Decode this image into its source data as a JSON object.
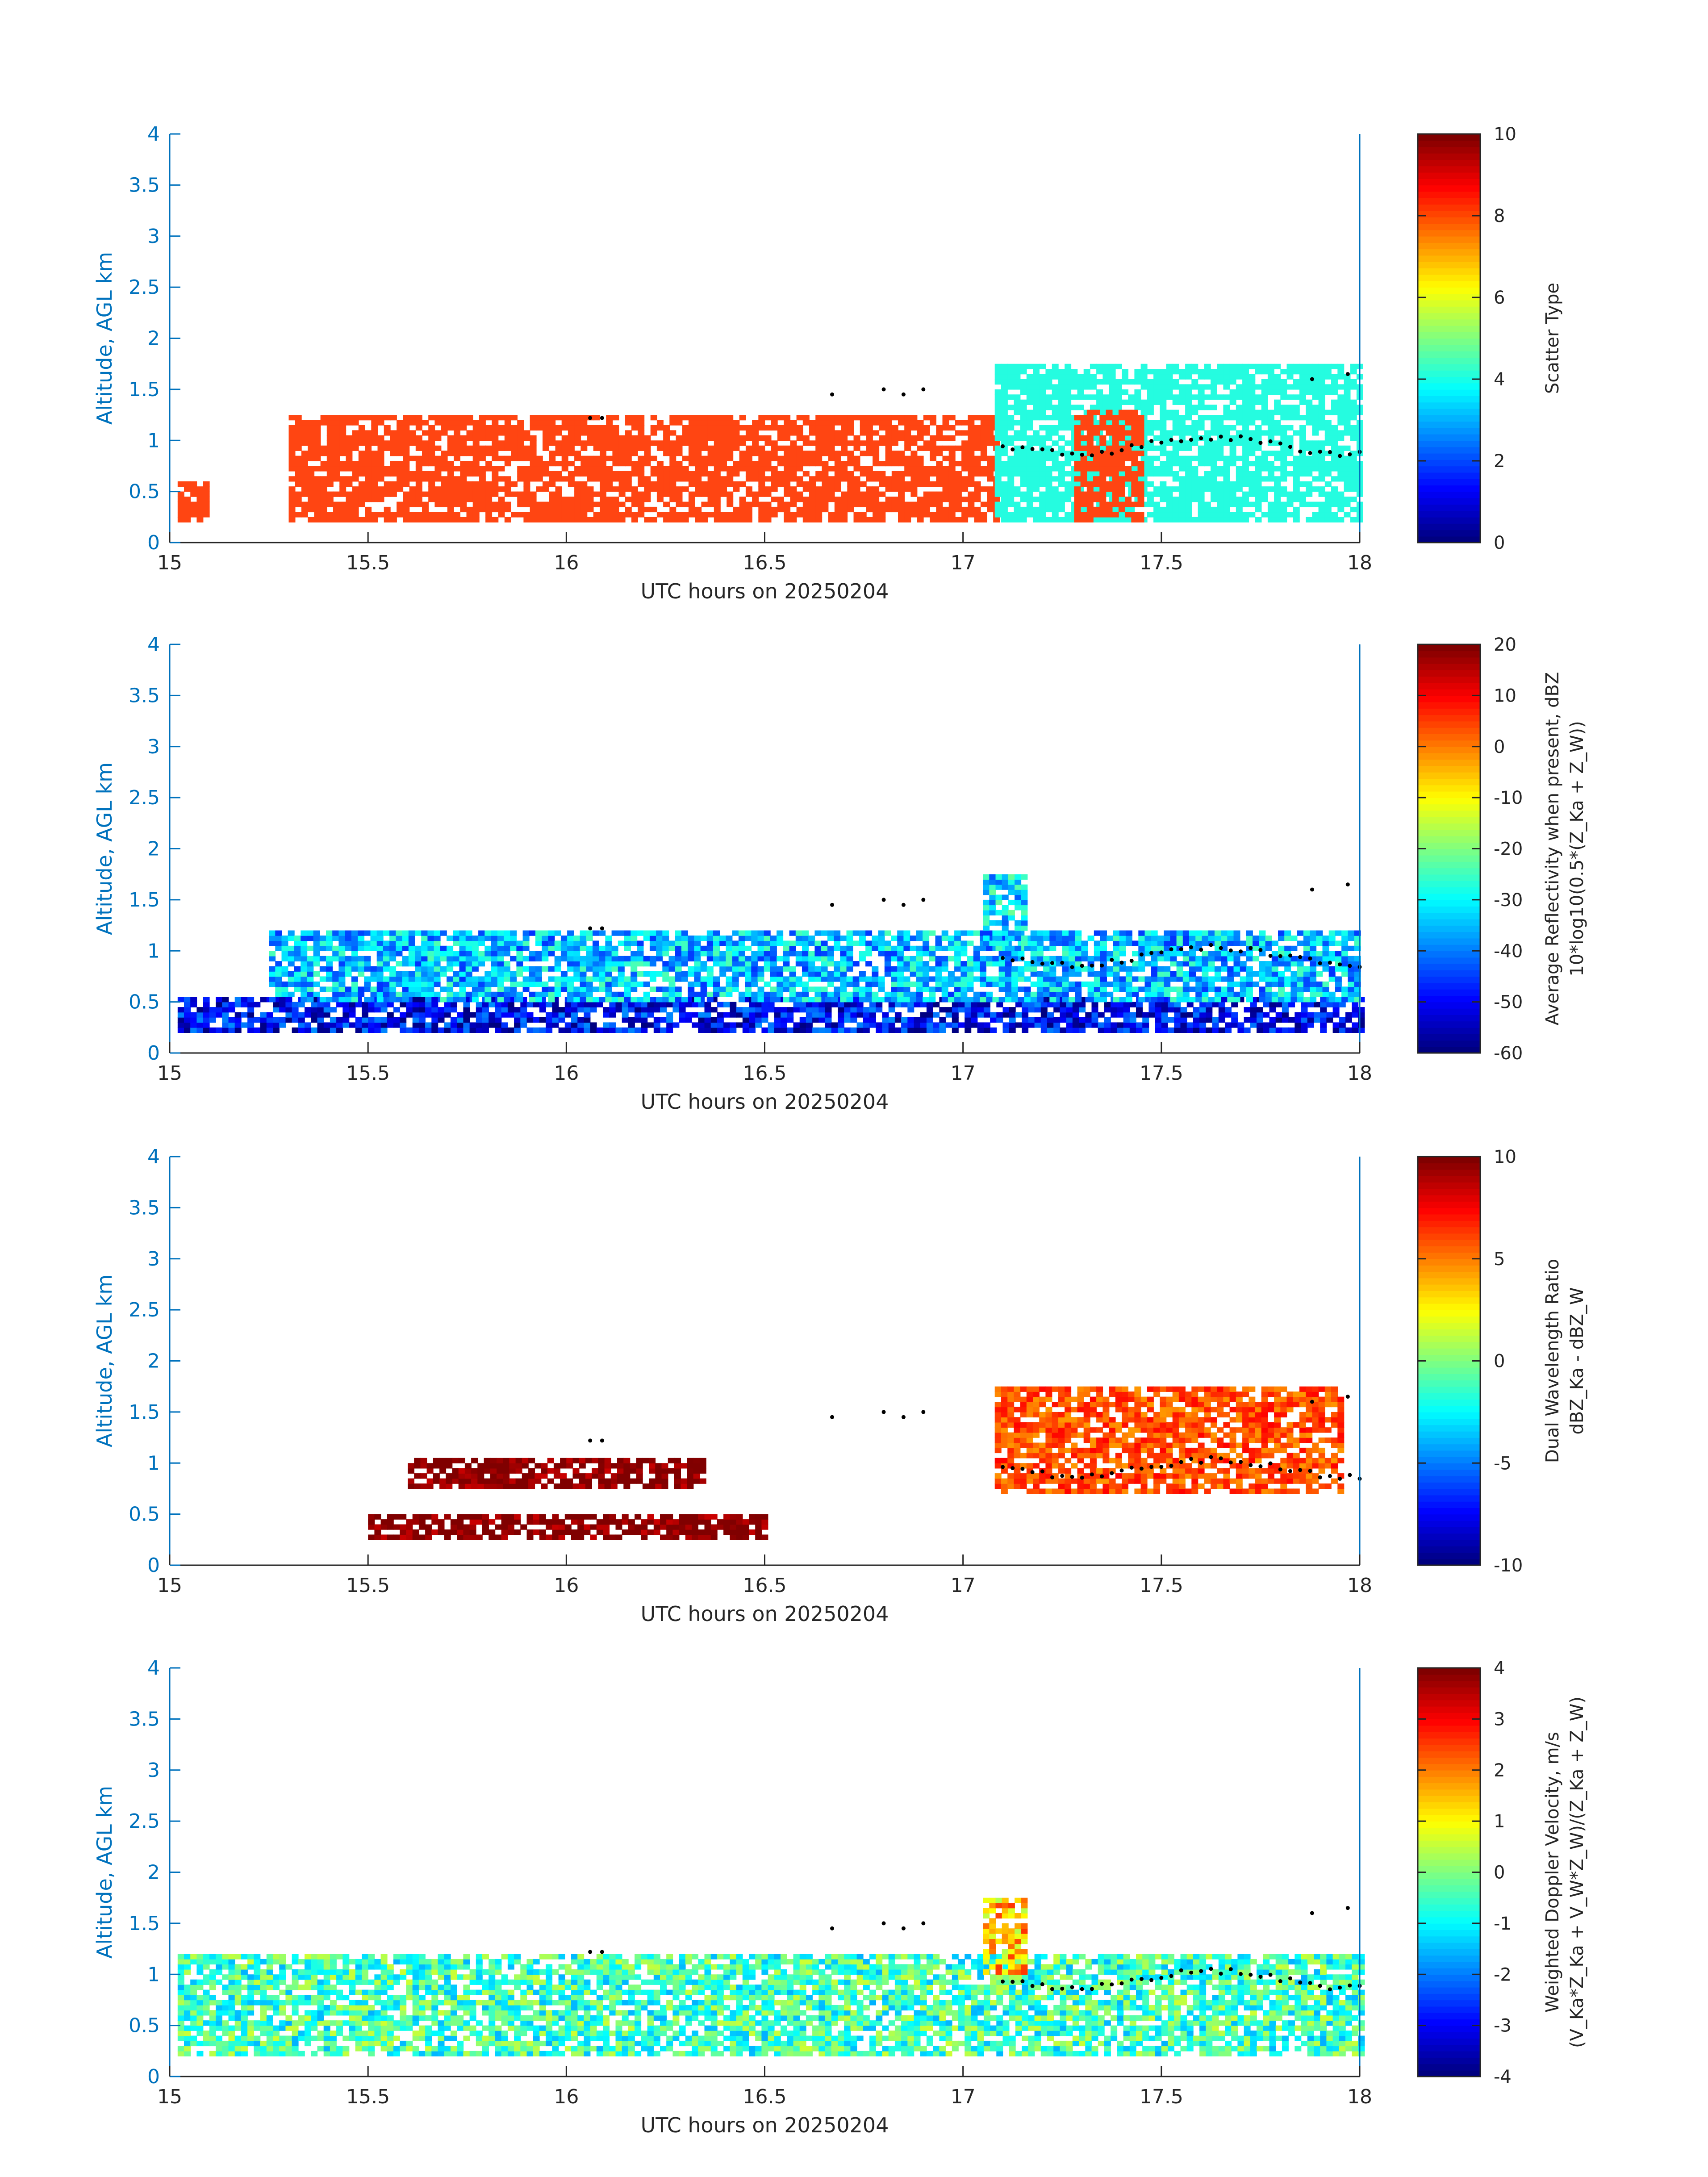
{
  "chart_data": [
    {
      "type": "heatmap",
      "xlabel": "UTC hours on 20250204",
      "ylabel": "Altitude, AGL km",
      "xlim": [
        15,
        18
      ],
      "ylim": [
        0,
        4
      ],
      "xticks": [
        "15",
        "15.5",
        "16",
        "16.5",
        "17",
        "17.5",
        "18"
      ],
      "yticks": [
        "0",
        "0.5",
        "1",
        "1.5",
        "2",
        "2.5",
        "3",
        "3.5",
        "4"
      ],
      "colorbar": {
        "label_line1": "Scatter Type",
        "label_line2": "",
        "clim": [
          0,
          10
        ],
        "ticks": [
          "0",
          "2",
          "4",
          "6",
          "8",
          "10"
        ],
        "colormap": "jet"
      },
      "colors": {
        "liquid": "#FF4512",
        "ice": "#25FCE0"
      },
      "cloud_base_km": "dotted black line, approx 1.0 km after 17.1 h",
      "data_summary": [
        {
          "x_range": [
            15.02,
            15.1
          ],
          "y_range": [
            0.2,
            0.6
          ],
          "value": 9
        },
        {
          "x_range": [
            15.3,
            17.08
          ],
          "y_range": [
            0.2,
            1.25
          ],
          "value": 9
        },
        {
          "x_range": [
            17.08,
            18.0
          ],
          "y_range": [
            0.2,
            1.75
          ],
          "value": 3.9
        },
        {
          "x_range": [
            17.28,
            17.45
          ],
          "y_range": [
            0.2,
            1.3
          ],
          "value": 9
        }
      ]
    },
    {
      "type": "heatmap",
      "xlabel": "UTC hours on 20250204",
      "ylabel": "Altitude, AGL km",
      "xlim": [
        15,
        18
      ],
      "ylim": [
        0,
        4
      ],
      "xticks": [
        "15",
        "15.5",
        "16",
        "16.5",
        "17",
        "17.5",
        "18"
      ],
      "yticks": [
        "0",
        "0.5",
        "1",
        "1.5",
        "2",
        "2.5",
        "3",
        "3.5",
        "4"
      ],
      "colorbar": {
        "label_line1": "Average Reflectivity when present, dBZ",
        "label_line2": "10*log10(0.5*(Z_Ka + Z_W))",
        "clim": [
          -60,
          20
        ],
        "ticks": [
          "-60",
          "-50",
          "-40",
          "-30",
          "-20",
          "-10",
          "0",
          "10",
          "20"
        ],
        "colormap": "jet"
      },
      "data_summary": [
        {
          "x_range": [
            15.02,
            18.0
          ],
          "y_range": [
            0.2,
            0.5
          ],
          "value": -50
        },
        {
          "x_range": [
            15.25,
            18.0
          ],
          "y_range": [
            0.5,
            1.2
          ],
          "value": -35
        },
        {
          "x_range": [
            17.05,
            17.15
          ],
          "y_range": [
            1.0,
            1.75
          ],
          "value": -32
        }
      ]
    },
    {
      "type": "heatmap",
      "xlabel": "UTC hours on 20250204",
      "ylabel": "Altitude, AGL km",
      "xlim": [
        15,
        18
      ],
      "ylim": [
        0,
        4
      ],
      "xticks": [
        "15",
        "15.5",
        "16",
        "16.5",
        "17",
        "17.5",
        "18"
      ],
      "yticks": [
        "0",
        "0.5",
        "1",
        "1.5",
        "2",
        "2.5",
        "3",
        "3.5",
        "4"
      ],
      "colorbar": {
        "label_line1": "Dual Wavelength Ratio",
        "label_line2": "dBZ_Ka - dBZ_W",
        "clim": [
          -10,
          10
        ],
        "ticks": [
          "-10",
          "-5",
          "0",
          "5",
          "10"
        ],
        "colormap": "jet"
      },
      "data_summary": [
        {
          "x_range": [
            15.5,
            16.5
          ],
          "y_range": [
            0.25,
            0.45
          ],
          "value": 10
        },
        {
          "x_range": [
            15.6,
            16.35
          ],
          "y_range": [
            0.75,
            1.05
          ],
          "value": 10
        },
        {
          "x_range": [
            17.08,
            17.95
          ],
          "y_range": [
            0.7,
            1.75
          ],
          "value": 6
        }
      ]
    },
    {
      "type": "heatmap",
      "xlabel": "UTC hours on 20250204",
      "ylabel": "Altitude, AGL km",
      "xlim": [
        15,
        18
      ],
      "ylim": [
        0,
        4
      ],
      "xticks": [
        "15",
        "15.5",
        "16",
        "16.5",
        "17",
        "17.5",
        "18"
      ],
      "yticks": [
        "0",
        "0.5",
        "1",
        "1.5",
        "2",
        "2.5",
        "3",
        "3.5",
        "4"
      ],
      "colorbar": {
        "label_line1": "Weighted Doppler Velocity, m/s",
        "label_line2": "(V_Ka*Z_Ka + V_W*Z_W)/(Z_Ka + Z_W)",
        "clim": [
          -4,
          4
        ],
        "ticks": [
          "-4",
          "-3",
          "-2",
          "-1",
          "0",
          "1",
          "2",
          "3",
          "4"
        ],
        "colormap": "jet"
      },
      "data_summary": [
        {
          "x_range": [
            15.02,
            18.0
          ],
          "y_range": [
            0.2,
            1.2
          ],
          "value": -0.5
        },
        {
          "x_range": [
            17.05,
            17.15
          ],
          "y_range": [
            1.0,
            1.75
          ],
          "value": 1.5
        }
      ]
    }
  ]
}
